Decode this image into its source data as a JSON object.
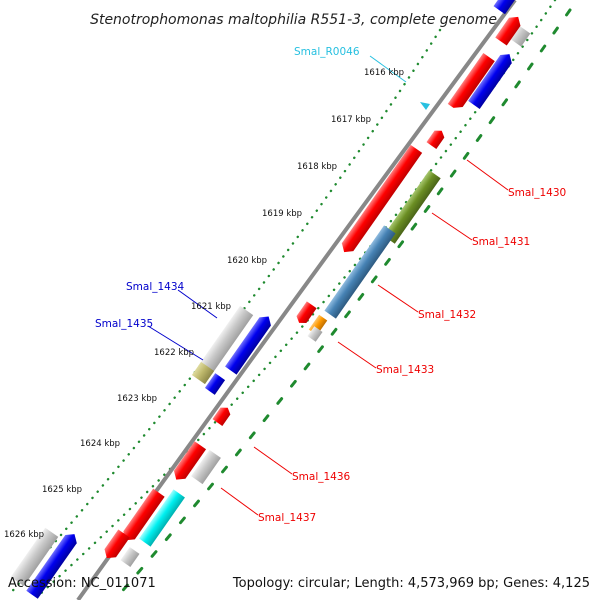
{
  "map": {
    "title": "Stenotrophomonas maltophilia R551-3, complete genome",
    "accession": "Accession: NC_011071",
    "summary": "Topology: circular; Length: 4,573,969 bp; Genes: 4,125",
    "colors": {
      "backbone": "#888888",
      "tick_dots": "#1f8a2f",
      "red": "#ff0000",
      "blue": "#0000ee",
      "gray": "#c8c8c8",
      "olive": "#6b8e23",
      "steelblue": "#4682b4",
      "orange": "#ff9900",
      "khaki": "#bdb76b",
      "cyan": "#00f0f0",
      "trna_label": "#27c0e0",
      "gene_label_red": "#ee0000",
      "gene_label_blue": "#0000cc"
    },
    "kbp_ticks": [
      "1616 kbp",
      "1617 kbp",
      "1618 kbp",
      "1619 kbp",
      "1620 kbp",
      "1621 kbp",
      "1622 kbp",
      "1623 kbp",
      "1624 kbp",
      "1625 kbp",
      "1626 kbp"
    ],
    "feature_labels": [
      {
        "text": "Smal_R0046",
        "color": "trna_label"
      },
      {
        "text": "Smal_1430",
        "color": "gene_label_red"
      },
      {
        "text": "Smal_1431",
        "color": "gene_label_red"
      },
      {
        "text": "Smal_1432",
        "color": "gene_label_red"
      },
      {
        "text": "Smal_1433",
        "color": "gene_label_red"
      },
      {
        "text": "Smal_1434",
        "color": "gene_label_blue"
      },
      {
        "text": "Smal_1435",
        "color": "gene_label_blue"
      },
      {
        "text": "Smal_1436",
        "color": "gene_label_red"
      },
      {
        "text": "Smal_1437",
        "color": "gene_label_red"
      }
    ]
  }
}
